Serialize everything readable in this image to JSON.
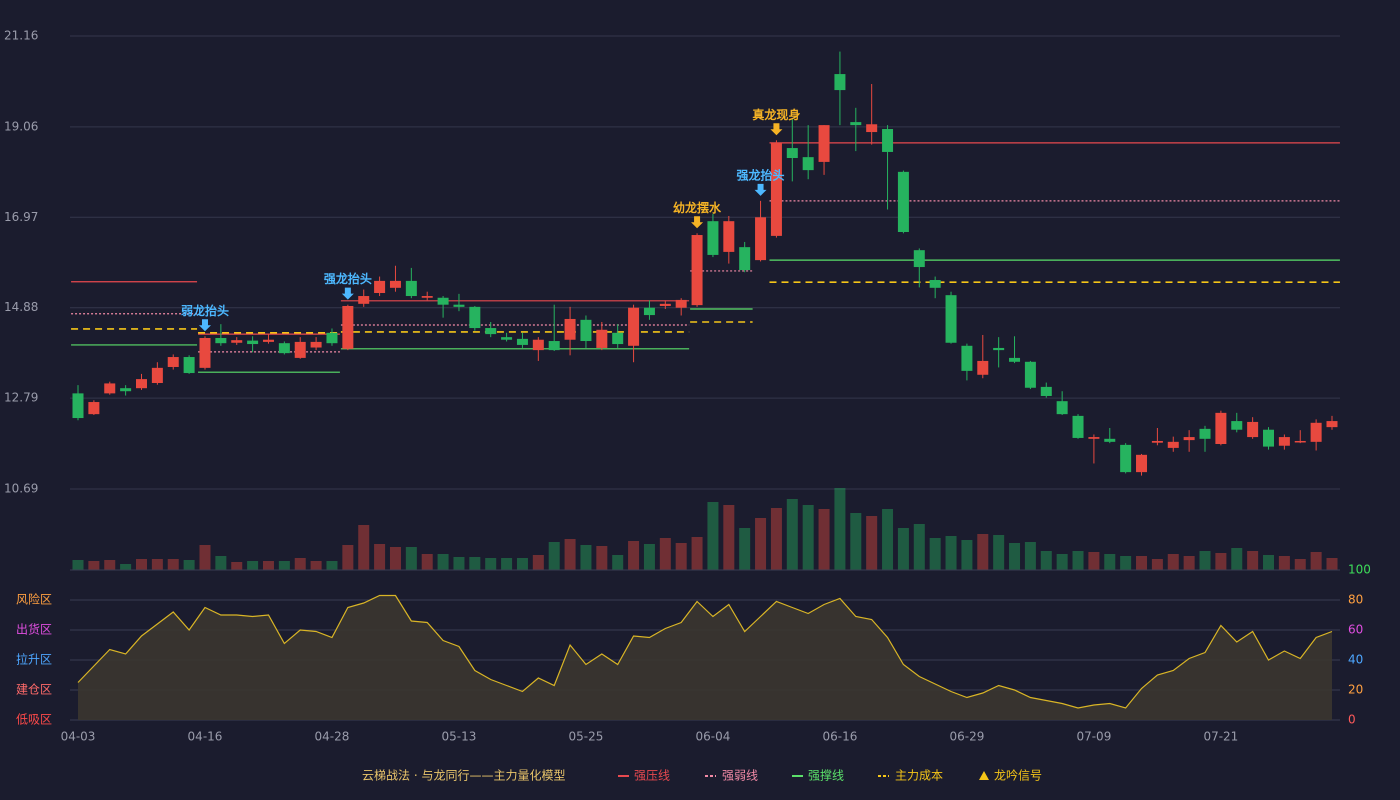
{
  "chart_data": {
    "type": "candlestick",
    "title": "云梯战法 · 与龙同行——主力量化模型",
    "categories": [
      "04-03",
      null,
      null,
      null,
      null,
      null,
      null,
      null,
      "04-16",
      null,
      null,
      null,
      null,
      null,
      null,
      null,
      "04-28",
      null,
      null,
      null,
      null,
      null,
      null,
      null,
      "05-13",
      null,
      null,
      null,
      null,
      null,
      null,
      null,
      "05-25",
      null,
      null,
      null,
      null,
      null,
      null,
      null,
      "06-04",
      null,
      null,
      null,
      null,
      null,
      null,
      null,
      "06-16",
      null,
      null,
      null,
      null,
      null,
      null,
      null,
      "06-29",
      null,
      null,
      null,
      null,
      null,
      null,
      null,
      "07-09",
      null,
      null,
      null,
      null,
      null,
      null,
      null,
      "07-21",
      null,
      null,
      null,
      null,
      null,
      null,
      null
    ],
    "open": [
      12.9,
      12.42,
      12.9,
      13.02,
      13.02,
      13.14,
      13.51,
      13.74,
      13.49,
      14.18,
      14.07,
      14.12,
      14.09,
      14.06,
      13.72,
      13.96,
      14.3,
      13.93,
      14.97,
      15.22,
      15.34,
      15.5,
      15.11,
      15.11,
      14.95,
      14.9,
      14.41,
      14.2,
      14.16,
      13.9,
      14.11,
      14.14,
      14.6,
      13.95,
      14.3,
      14.0,
      14.88,
      14.92,
      14.88,
      14.94,
      16.88,
      16.17,
      16.28,
      15.98,
      16.54,
      18.57,
      18.36,
      18.25,
      20.28,
      19.17,
      18.94,
      19.01,
      18.02,
      16.21,
      15.52,
      15.17,
      14.0,
      13.33,
      13.95,
      13.72,
      13.63,
      13.05,
      12.72,
      12.38,
      11.85,
      11.85,
      11.71,
      11.08,
      11.76,
      11.64,
      11.82,
      12.08,
      11.73,
      12.26,
      11.89,
      12.06,
      11.69,
      11.78,
      11.78,
      12.12
    ],
    "high": [
      13.09,
      12.74,
      13.17,
      13.09,
      13.35,
      13.62,
      13.8,
      13.78,
      14.22,
      14.5,
      14.2,
      14.22,
      14.28,
      14.1,
      14.2,
      14.2,
      14.4,
      14.95,
      15.3,
      15.6,
      15.85,
      15.8,
      15.25,
      15.15,
      15.2,
      14.92,
      14.55,
      14.3,
      14.3,
      14.2,
      14.95,
      14.9,
      14.7,
      14.55,
      14.5,
      14.95,
      15.05,
      15.05,
      15.1,
      16.6,
      17.05,
      17.0,
      16.4,
      17.35,
      18.75,
      19.25,
      19.1,
      19.1,
      20.8,
      19.5,
      20.05,
      19.1,
      18.05,
      16.25,
      15.6,
      15.25,
      14.05,
      14.25,
      14.2,
      14.22,
      13.65,
      13.15,
      12.95,
      12.42,
      11.95,
      12.1,
      11.75,
      11.5,
      12.1,
      11.9,
      12.05,
      12.15,
      12.5,
      12.45,
      12.35,
      12.12,
      11.95,
      12.05,
      12.3,
      12.38
    ],
    "low": [
      12.28,
      12.4,
      12.87,
      12.85,
      12.98,
      13.1,
      13.45,
      13.35,
      13.45,
      14.0,
      14.02,
      13.85,
      14.05,
      13.8,
      13.7,
      13.9,
      14.0,
      13.9,
      14.9,
      15.15,
      15.25,
      15.1,
      15.05,
      14.65,
      14.8,
      14.35,
      14.2,
      14.1,
      13.95,
      13.65,
      13.88,
      13.78,
      13.95,
      13.9,
      13.95,
      13.62,
      14.6,
      14.85,
      14.7,
      14.9,
      16.05,
      15.9,
      15.7,
      15.95,
      16.5,
      17.8,
      17.85,
      17.95,
      19.1,
      18.5,
      18.65,
      17.15,
      16.6,
      15.35,
      15.1,
      14.05,
      13.2,
      13.25,
      13.5,
      13.6,
      13.0,
      12.8,
      12.4,
      11.85,
      11.28,
      11.75,
      11.05,
      11.0,
      11.7,
      11.55,
      11.55,
      11.55,
      11.7,
      12.0,
      11.85,
      11.6,
      11.6,
      11.75,
      11.58,
      12.06
    ],
    "close": [
      12.33,
      12.7,
      13.13,
      12.95,
      13.23,
      13.49,
      13.74,
      13.37,
      14.18,
      14.06,
      14.13,
      14.04,
      14.14,
      13.83,
      14.09,
      14.09,
      14.06,
      14.92,
      15.15,
      15.5,
      15.5,
      15.15,
      15.15,
      14.95,
      14.9,
      14.41,
      14.27,
      14.14,
      14.02,
      14.14,
      13.9,
      14.62,
      14.11,
      14.37,
      14.04,
      14.88,
      14.71,
      14.97,
      15.06,
      16.56,
      16.1,
      16.88,
      15.75,
      16.97,
      18.69,
      18.34,
      18.06,
      19.1,
      19.91,
      19.1,
      19.12,
      18.48,
      16.63,
      15.82,
      15.34,
      14.07,
      13.42,
      13.65,
      13.9,
      13.63,
      13.03,
      12.84,
      12.42,
      11.87,
      11.89,
      11.78,
      11.08,
      11.48,
      11.8,
      11.78,
      11.89,
      11.85,
      12.45,
      12.06,
      12.24,
      11.67,
      11.89,
      11.8,
      12.22,
      12.26
    ],
    "up_color": "#e8493f",
    "down_color": "#26b35f",
    "ylim": [
      10.69,
      21.16
    ],
    "yticks": [
      10.69,
      12.79,
      14.88,
      16.97,
      19.06,
      21.16
    ],
    "grid": true,
    "levels": [
      {
        "name": "强压线",
        "color": "#e8494f",
        "style": "solid",
        "segments": [
          {
            "from": 0,
            "to": 7,
            "value": 15.48
          },
          {
            "from": 8,
            "to": 16,
            "value": 14.27
          },
          {
            "from": 17,
            "to": 38,
            "value": 15.04
          },
          {
            "from": 44,
            "to": 79,
            "value": 18.69
          }
        ]
      },
      {
        "name": "强弱线",
        "color": "#f28aa6",
        "style": "dotted",
        "segments": [
          {
            "from": 0,
            "to": 7,
            "value": 14.74
          },
          {
            "from": 8,
            "to": 16,
            "value": 13.86
          },
          {
            "from": 17,
            "to": 38,
            "value": 14.48
          },
          {
            "from": 39,
            "to": 42,
            "value": 15.73
          },
          {
            "from": 44,
            "to": 79,
            "value": 17.35
          }
        ]
      },
      {
        "name": "强撑线",
        "color": "#5be06a",
        "style": "solid",
        "segments": [
          {
            "from": 0,
            "to": 7,
            "value": 14.02
          },
          {
            "from": 8,
            "to": 16,
            "value": 13.39
          },
          {
            "from": 17,
            "to": 38,
            "value": 13.93
          },
          {
            "from": 39,
            "to": 42,
            "value": 14.85
          },
          {
            "from": 44,
            "to": 79,
            "value": 15.98
          }
        ]
      },
      {
        "name": "主力成本",
        "color": "#f5c518",
        "style": "dashed",
        "segments": [
          {
            "from": 0,
            "to": 7,
            "value": 14.39
          },
          {
            "from": 8,
            "to": 16,
            "value": 14.3
          },
          {
            "from": 17,
            "to": 38,
            "value": 14.32
          },
          {
            "from": 39,
            "to": 42,
            "value": 14.55
          },
          {
            "from": 44,
            "to": 79,
            "value": 15.47
          }
        ]
      }
    ],
    "signals": {
      "name": "龙吟信号",
      "color": "#f5c518",
      "items": [
        {
          "index": 8,
          "label": "弱龙抬头",
          "color": "#4db8ff"
        },
        {
          "index": 17,
          "label": "强龙抬头",
          "color": "#4db8ff"
        },
        {
          "index": 39,
          "label": "幼龙摆水",
          "color": "#f5b325"
        },
        {
          "index": 43,
          "label": "强龙抬头",
          "color": "#4db8ff"
        },
        {
          "index": 44,
          "label": "真龙现身",
          "color": "#f5b325"
        }
      ]
    },
    "volume": {
      "type": "bar",
      "ylim": [
        0,
        82
      ],
      "values": [
        10,
        9,
        10,
        6,
        11,
        11,
        11,
        10,
        25,
        14,
        8,
        9,
        9,
        9,
        12,
        9,
        9,
        25,
        45,
        26,
        23,
        23,
        16,
        16,
        13,
        13,
        12,
        12,
        12,
        15,
        28,
        31,
        25,
        24,
        15,
        29,
        26,
        32,
        27,
        33,
        68,
        65,
        42,
        52,
        62,
        71,
        65,
        61,
        82,
        57,
        54,
        61,
        42,
        46,
        32,
        34,
        30,
        36,
        35,
        27,
        28,
        19,
        16,
        19,
        18,
        16,
        14,
        14,
        11,
        16,
        14,
        19,
        17,
        22,
        19,
        15,
        14,
        11,
        18,
        12
      ]
    },
    "oscillator": {
      "type": "area",
      "color": "#d9b526",
      "fill": "#3b3630",
      "ylim": [
        0,
        100
      ],
      "yticks": [
        0,
        20,
        40,
        60,
        80,
        100
      ],
      "ytick_colors": [
        "#ff5a5a",
        "#ff9f40",
        "#4da6ff",
        "#e04ee0",
        "#ff9f40",
        "#3ddc5a"
      ],
      "zones": [
        {
          "value": 80,
          "label": "风险区",
          "color": "#ff9f40"
        },
        {
          "value": 60,
          "label": "出货区",
          "color": "#e04ee0"
        },
        {
          "value": 40,
          "label": "拉升区",
          "color": "#4da6ff"
        },
        {
          "value": 20,
          "label": "建仓区",
          "color": "#ff6a6a"
        },
        {
          "value": 0,
          "label": "低吸区",
          "color": "#ff4a4a"
        }
      ],
      "values": [
        25,
        36,
        47,
        44,
        56,
        64,
        72,
        60,
        75,
        70,
        70,
        69,
        70,
        51,
        60,
        59,
        55,
        75,
        78,
        83,
        83,
        66,
        65,
        53,
        49,
        33,
        27,
        23,
        19,
        28,
        23,
        50,
        37,
        44,
        37,
        56,
        55,
        61,
        65,
        79,
        69,
        77,
        59,
        69,
        79,
        75,
        71,
        77,
        81,
        69,
        67,
        55,
        37,
        29,
        24,
        19,
        15,
        18,
        23,
        20,
        15,
        13,
        11,
        8,
        10,
        11,
        8,
        21,
        30,
        33,
        41,
        45,
        63,
        52,
        59,
        40,
        46,
        41,
        55,
        59
      ]
    }
  }
}
